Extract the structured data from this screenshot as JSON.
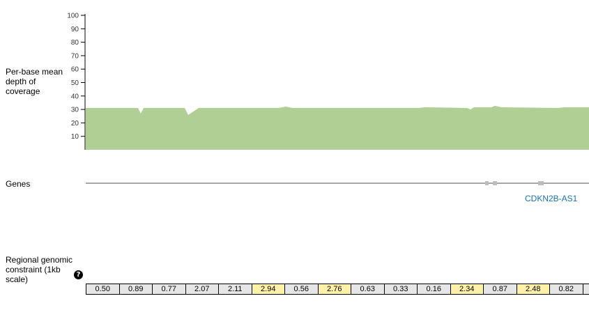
{
  "coverage": {
    "label": "Per-base mean depth of coverage",
    "y_ticks": [
      "100",
      "90",
      "80",
      "70",
      "60",
      "50",
      "40",
      "30",
      "20",
      "10"
    ],
    "fill_color": "#afcf94",
    "mean_depth": 31
  },
  "genes": {
    "label": "Genes",
    "gene_name": "CDKN2B-AS1"
  },
  "constraint": {
    "label": "Regional genomic constraint (1kb scale)",
    "help_icon": "question-circle-icon",
    "values": [
      "0.50",
      "0.89",
      "0.77",
      "2.07",
      "2.11",
      "2.94",
      "0.56",
      "2.76",
      "0.63",
      "0.33",
      "0.16",
      "2.34",
      "0.87",
      "2.48",
      "0.82",
      ""
    ],
    "highlighted": [
      false,
      false,
      false,
      false,
      false,
      true,
      false,
      true,
      false,
      false,
      false,
      true,
      false,
      true,
      false,
      false
    ]
  }
}
